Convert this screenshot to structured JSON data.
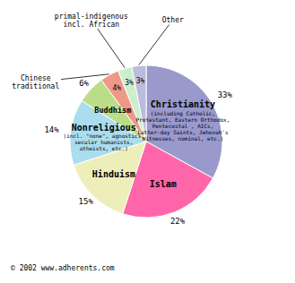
{
  "chart_data": {
    "type": "pie",
    "categories": [
      "Christianity",
      "Islam",
      "Hinduism",
      "Nonreligious",
      "Buddhism",
      "Chinese\ntraditional",
      "primal-indigenous\nincl. African",
      "Other"
    ],
    "values": [
      33,
      22,
      15,
      14,
      6,
      4,
      3,
      3
    ],
    "value_labels": [
      "33%",
      "22%",
      "15%",
      "14%",
      "6%",
      "4%",
      "3%",
      "3%"
    ],
    "colors": [
      "#9999cc",
      "#ff66aa",
      "#eeeebb",
      "#aaddee",
      "#bbdd88",
      "#ee9988",
      "#cceecc",
      "#bbbbdd"
    ],
    "data_labels": true,
    "annotations": [
      {
        "text": "(including Catholic,\nProtestant, Eastern Orthodox,\nPentecostal , AICs,\nLatter-day Saints, Jehovah's\nWitnesses, nominal, etc.)",
        "category": "Christianity"
      },
      {
        "text": "(incl. \"none\", agnostics,\nsecular humanists,\natheists, etc.)",
        "category": "Nonreligious"
      },
      {
        "text": "© 2002 www.adherents.com"
      }
    ]
  }
}
